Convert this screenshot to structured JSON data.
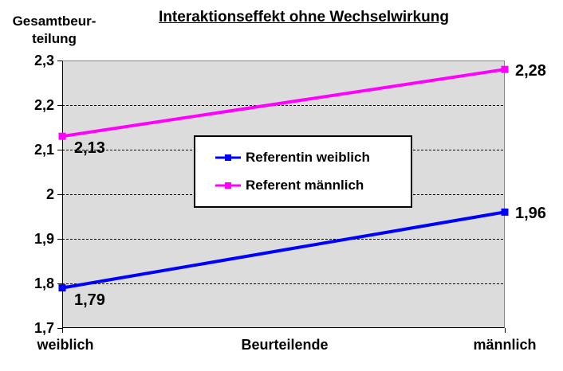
{
  "chart_data": {
    "type": "line",
    "title": "Interaktionseffekt ohne Wechselwirkung",
    "ylabel": "Gesamtbeurteilung",
    "ylabel_lines": [
      "Gesamtbeur-",
      "teilung"
    ],
    "xlabel": "Beurteilende",
    "categories": [
      "weiblich",
      "männlich"
    ],
    "ylim": [
      1.7,
      2.3
    ],
    "y_ticks": [
      2.3,
      2.2,
      2.1,
      2.0,
      1.9,
      1.8,
      1.7
    ],
    "y_tick_labels": [
      "2,3",
      "2,2",
      "2,1",
      "2",
      "1,9",
      "1,8",
      "1,7"
    ],
    "grid": "horizontal-dashed",
    "legend_position": "center",
    "plot_background": "#DCDCDC",
    "series": [
      {
        "name": "Referentin weiblich",
        "color": "#0000FF",
        "values": [
          1.79,
          1.96
        ],
        "labels": [
          "1,79",
          "1,96"
        ]
      },
      {
        "name": "Referent männlich",
        "color": "#FF00FF",
        "values": [
          2.13,
          2.28
        ],
        "labels": [
          "2,13",
          "2,28"
        ]
      }
    ]
  }
}
